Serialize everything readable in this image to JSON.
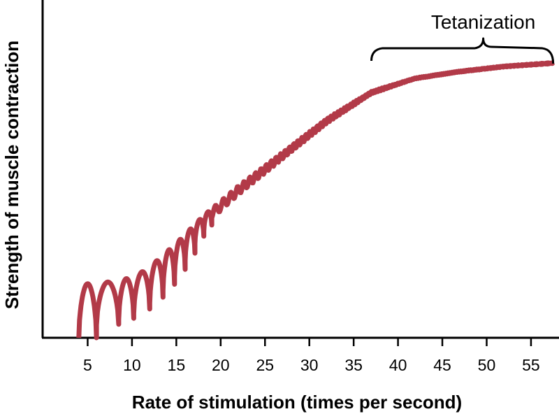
{
  "chart_data": {
    "type": "line",
    "title": "",
    "xlabel": "Rate of stimulation (times per second)",
    "ylabel": "Strength of muscle contraction",
    "xlim": [
      0,
      58
    ],
    "ylim": [
      0,
      100
    ],
    "x_ticks": [
      5,
      10,
      15,
      20,
      25,
      30,
      35,
      40,
      45,
      50,
      55
    ],
    "x_tick_labels": [
      "5",
      "10",
      "15",
      "20",
      "25",
      "30",
      "35",
      "40",
      "45",
      "50",
      "55"
    ],
    "y_ticks": [],
    "grid": false,
    "legend": "none",
    "line_color": "#b23a48",
    "series": [
      {
        "x": [
          4.0,
          6.0,
          8.5,
          10.2,
          12,
          15,
          18,
          22,
          27,
          32,
          37,
          42,
          47,
          52,
          57.5
        ],
        "values": [
          16,
          16,
          17,
          18,
          21,
          28,
          36,
          45,
          55,
          65,
          73,
          77,
          79,
          80.5,
          81.5
        ]
      }
    ],
    "annotations": [
      {
        "text": "Tetanization",
        "x_start": 37,
        "x_end": 57.5,
        "y": 82
      }
    ]
  }
}
